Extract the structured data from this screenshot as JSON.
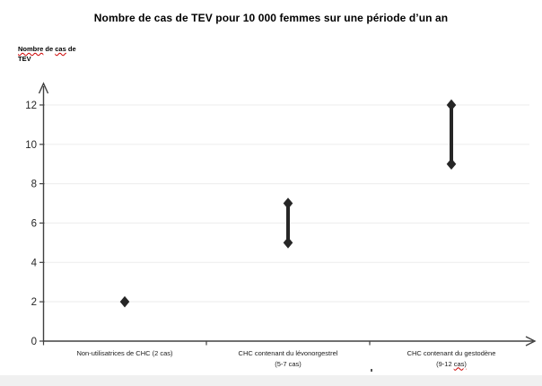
{
  "page": {
    "background": "#ffffff",
    "footer_strip_color": "#f0f0f0"
  },
  "chart_data": {
    "type": "scatter",
    "subtype": "high-low-range",
    "title": "Nombre de cas de TEV pour 10 000 femmes sur une période d’un an",
    "ylabel": "Nombre de cas de TEV",
    "ylabel_line1_segments": [
      {
        "text": "Nombre",
        "misspelled": true
      },
      {
        "text": " de ",
        "misspelled": false
      },
      {
        "text": "cas",
        "misspelled": true
      },
      {
        "text": " de",
        "misspelled": false
      }
    ],
    "ylabel_line2": "TEV",
    "xlabel": "",
    "ylim": [
      0,
      12
    ],
    "yticks": [
      0,
      2,
      4,
      6,
      8,
      10,
      12
    ],
    "grid": true,
    "legend": "none",
    "categories": [
      {
        "label": "Non-utilisatrices de CHC (2 cas)",
        "sublabel_segments": [],
        "low": 2,
        "high": 2
      },
      {
        "label": "CHC contenant du lévonorgestrel",
        "sublabel_segments": [
          {
            "text": "(5-7 cas)",
            "misspelled": false
          }
        ],
        "low": 5,
        "high": 7
      },
      {
        "label": "CHC contenant du gestodène",
        "sublabel_segments": [
          {
            "text": "(9-12 ",
            "misspelled": false
          },
          {
            "text": "cas)",
            "misspelled": true
          }
        ],
        "low": 9,
        "high": 12
      }
    ],
    "series": [
      {
        "name": "cas de TEV",
        "low": [
          2,
          5,
          9
        ],
        "high": [
          2,
          7,
          12
        ]
      }
    ],
    "colors": {
      "marker": "#262626",
      "axis": "#404040",
      "gridline": "#efefef",
      "tick_text": "#262626",
      "spellcheck": "#cc0000"
    }
  }
}
